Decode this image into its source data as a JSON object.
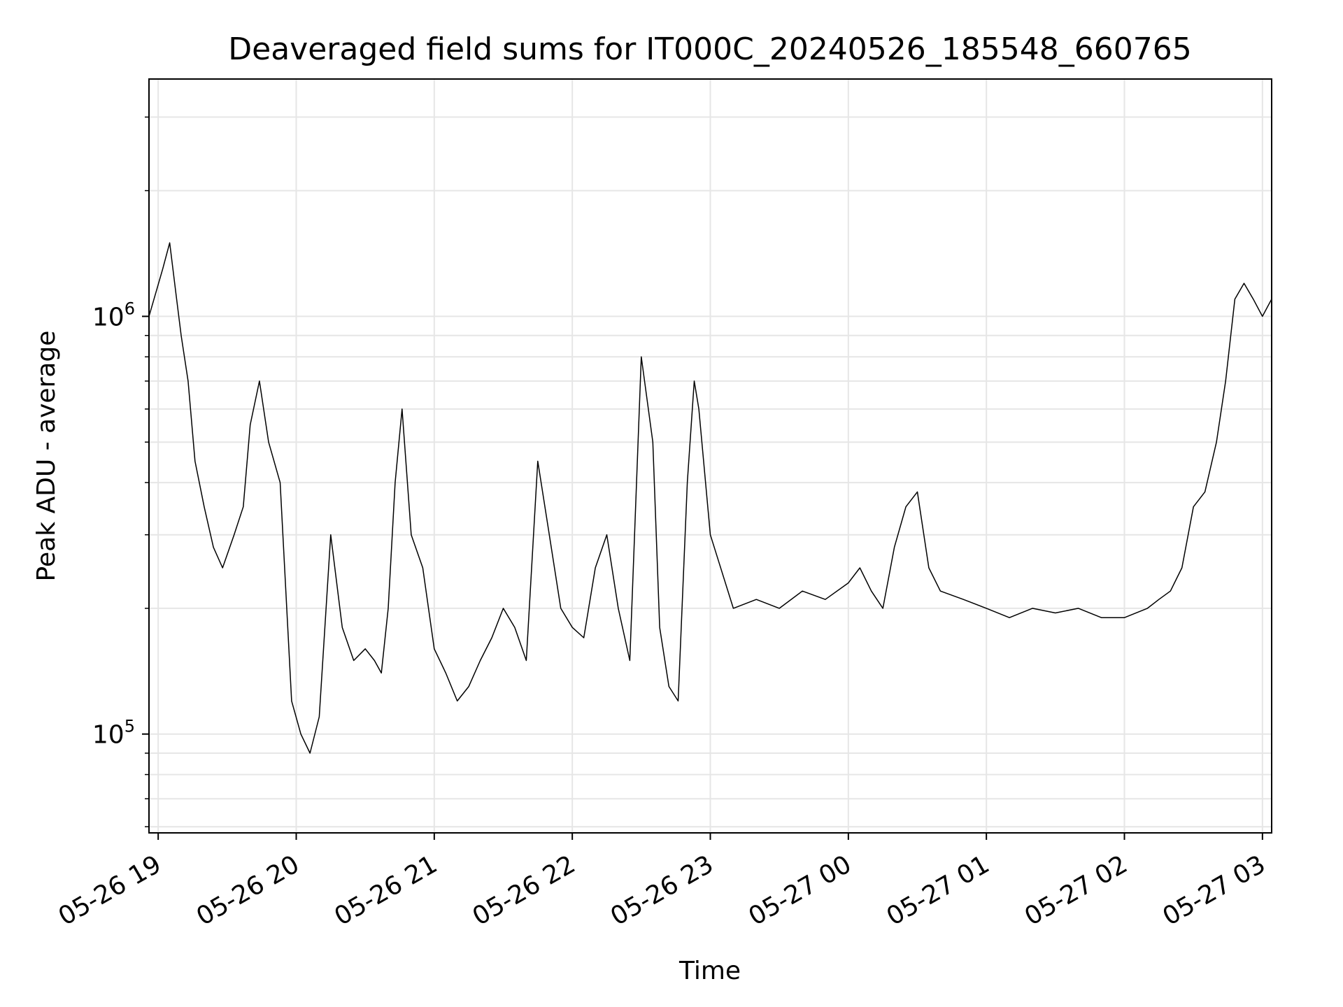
{
  "chart_data": {
    "type": "line",
    "title": "Deaveraged field sums for IT000C_20240526_185548_660765",
    "xlabel": "Time",
    "ylabel": "Peak ADU - average",
    "yscale": "log",
    "ylim": [
      58000,
      3700000
    ],
    "xlim": [
      "2024-05-26 18:56",
      "2024-05-27 03:04"
    ],
    "x_ticks": [
      {
        "t": "2024-05-26 19:00",
        "label": "05-26 19"
      },
      {
        "t": "2024-05-26 20:00",
        "label": "05-26 20"
      },
      {
        "t": "2024-05-26 21:00",
        "label": "05-26 21"
      },
      {
        "t": "2024-05-26 22:00",
        "label": "05-26 22"
      },
      {
        "t": "2024-05-26 23:00",
        "label": "05-26 23"
      },
      {
        "t": "2024-05-27 00:00",
        "label": "05-27 00"
      },
      {
        "t": "2024-05-27 01:00",
        "label": "05-27 01"
      },
      {
        "t": "2024-05-27 02:00",
        "label": "05-27 02"
      },
      {
        "t": "2024-05-27 03:00",
        "label": "05-27 03"
      }
    ],
    "y_ticks": [
      {
        "value": 100000,
        "base": "10",
        "exp": "5"
      },
      {
        "value": 1000000,
        "base": "10",
        "exp": "6"
      }
    ],
    "grid": true,
    "line_color": "#000000",
    "grid_color": "#e6e6e6",
    "series": [
      {
        "name": "",
        "x": [
          "2024-05-26 18:56",
          "2024-05-26 19:02",
          "2024-05-26 19:05",
          "2024-05-26 19:08",
          "2024-05-26 19:10",
          "2024-05-26 19:13",
          "2024-05-26 19:16",
          "2024-05-26 19:20",
          "2024-05-26 19:24",
          "2024-05-26 19:28",
          "2024-05-26 19:33",
          "2024-05-26 19:37",
          "2024-05-26 19:40",
          "2024-05-26 19:44",
          "2024-05-26 19:48",
          "2024-05-26 19:53",
          "2024-05-26 19:58",
          "2024-05-26 20:02",
          "2024-05-26 20:06",
          "2024-05-26 20:10",
          "2024-05-26 20:15",
          "2024-05-26 20:20",
          "2024-05-26 20:25",
          "2024-05-26 20:30",
          "2024-05-26 20:34",
          "2024-05-26 20:37",
          "2024-05-26 20:40",
          "2024-05-26 20:43",
          "2024-05-26 20:46",
          "2024-05-26 20:50",
          "2024-05-26 20:55",
          "2024-05-26 21:00",
          "2024-05-26 21:05",
          "2024-05-26 21:10",
          "2024-05-26 21:15",
          "2024-05-26 21:20",
          "2024-05-26 21:25",
          "2024-05-26 21:30",
          "2024-05-26 21:35",
          "2024-05-26 21:40",
          "2024-05-26 21:45",
          "2024-05-26 21:50",
          "2024-05-26 21:55",
          "2024-05-26 22:00",
          "2024-05-26 22:05",
          "2024-05-26 22:10",
          "2024-05-26 22:15",
          "2024-05-26 22:20",
          "2024-05-26 22:25",
          "2024-05-26 22:30",
          "2024-05-26 22:35",
          "2024-05-26 22:38",
          "2024-05-26 22:42",
          "2024-05-26 22:46",
          "2024-05-26 22:50",
          "2024-05-26 22:53",
          "2024-05-26 22:55",
          "2024-05-26 23:00",
          "2024-05-26 23:10",
          "2024-05-26 23:20",
          "2024-05-26 23:30",
          "2024-05-26 23:40",
          "2024-05-26 23:50",
          "2024-05-27 00:00",
          "2024-05-27 00:05",
          "2024-05-27 00:10",
          "2024-05-27 00:15",
          "2024-05-27 00:20",
          "2024-05-27 00:25",
          "2024-05-27 00:30",
          "2024-05-27 00:35",
          "2024-05-27 00:40",
          "2024-05-27 00:50",
          "2024-05-27 01:00",
          "2024-05-27 01:10",
          "2024-05-27 01:20",
          "2024-05-27 01:30",
          "2024-05-27 01:40",
          "2024-05-27 01:50",
          "2024-05-27 02:00",
          "2024-05-27 02:10",
          "2024-05-27 02:15",
          "2024-05-27 02:20",
          "2024-05-27 02:25",
          "2024-05-27 02:30",
          "2024-05-27 02:35",
          "2024-05-27 02:40",
          "2024-05-27 02:44",
          "2024-05-27 02:48",
          "2024-05-27 02:52",
          "2024-05-27 02:56",
          "2024-05-27 03:00",
          "2024-05-27 03:04"
        ],
        "y": [
          1000000,
          1300000,
          1500000,
          1100000,
          900000,
          700000,
          450000,
          350000,
          280000,
          250000,
          300000,
          350000,
          550000,
          700000,
          500000,
          400000,
          120000,
          100000,
          90000,
          110000,
          300000,
          180000,
          150000,
          160000,
          150000,
          140000,
          200000,
          400000,
          600000,
          300000,
          250000,
          160000,
          140000,
          120000,
          130000,
          150000,
          170000,
          200000,
          180000,
          150000,
          450000,
          300000,
          200000,
          180000,
          170000,
          250000,
          300000,
          200000,
          150000,
          800000,
          500000,
          180000,
          130000,
          120000,
          400000,
          700000,
          600000,
          300000,
          200000,
          210000,
          200000,
          220000,
          210000,
          230000,
          250000,
          220000,
          200000,
          280000,
          350000,
          380000,
          250000,
          220000,
          210000,
          200000,
          190000,
          200000,
          195000,
          200000,
          190000,
          190000,
          200000,
          210000,
          220000,
          250000,
          350000,
          380000,
          500000,
          700000,
          1100000,
          1200000,
          1100000,
          1000000,
          1100000
        ]
      }
    ]
  }
}
